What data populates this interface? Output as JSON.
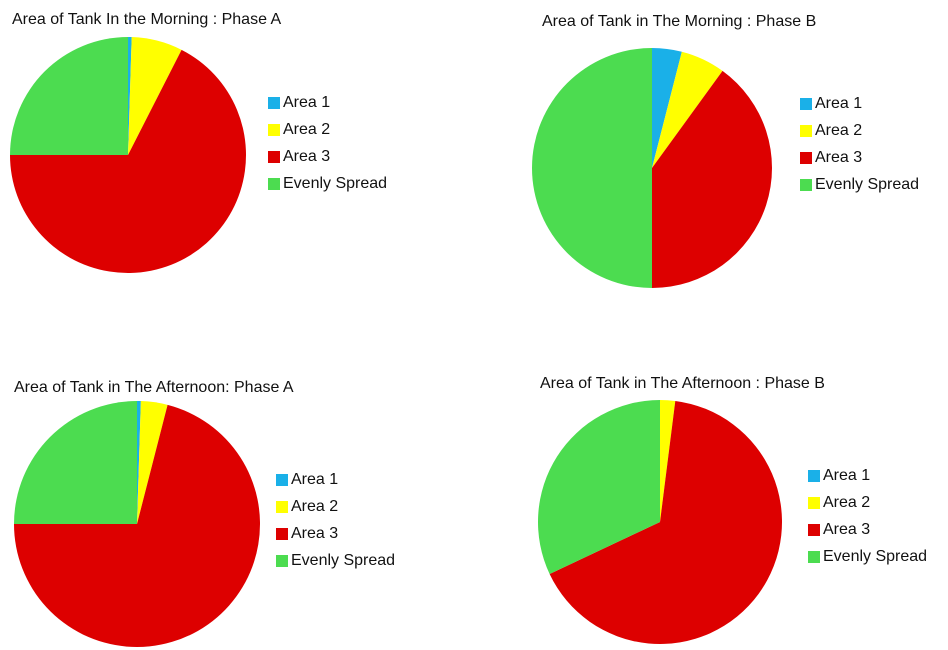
{
  "chart_data": [
    {
      "type": "pie",
      "title": "Area of Tank In the Morning : Phase A",
      "categories": [
        "Area 1",
        "Area 2",
        "Area 3",
        "Evenly Spread"
      ],
      "values": [
        0.5,
        7,
        67.5,
        25
      ],
      "colors": [
        "#1ab0e8",
        "#ffff00",
        "#dd0000",
        "#4cdc50"
      ]
    },
    {
      "type": "pie",
      "title": "Area of Tank in The Morning : Phase B",
      "categories": [
        "Area 1",
        "Area 2",
        "Area 3",
        "Evenly Spread"
      ],
      "values": [
        4,
        6,
        40,
        50
      ],
      "colors": [
        "#1ab0e8",
        "#ffff00",
        "#dd0000",
        "#4cdc50"
      ]
    },
    {
      "type": "pie",
      "title": "Area of Tank in The Afternoon: Phase A",
      "categories": [
        "Area 1",
        "Area 2",
        "Area 3",
        "Evenly Spread"
      ],
      "values": [
        0.5,
        3.5,
        71,
        25
      ],
      "colors": [
        "#1ab0e8",
        "#ffff00",
        "#dd0000",
        "#4cdc50"
      ]
    },
    {
      "type": "pie",
      "title": "Area of Tank in The Afternoon : Phase B",
      "categories": [
        "Area 1",
        "Area 2",
        "Area 3",
        "Evenly Spread"
      ],
      "values": [
        0,
        2,
        66,
        32
      ],
      "colors": [
        "#1ab0e8",
        "#ffff00",
        "#dd0000",
        "#4cdc50"
      ]
    }
  ]
}
